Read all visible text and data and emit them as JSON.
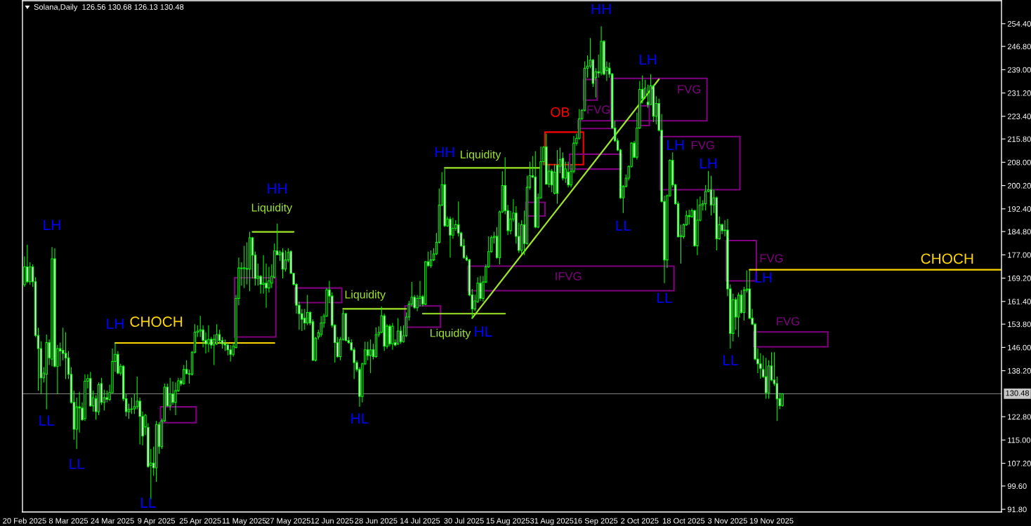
{
  "chart_data": {
    "type": "candlestick",
    "title": "Solana,Daily  126.56 130.68 126.13 130.48",
    "color": "#00ff00",
    "x": [
      "2025-02-20",
      "2025-02-21",
      "2025-02-22",
      "2025-02-23",
      "2025-02-24",
      "2025-02-25",
      "2025-02-26",
      "2025-02-27",
      "2025-02-28",
      "2025-03-01",
      "2025-03-02",
      "2025-03-03",
      "2025-03-04",
      "2025-03-05",
      "2025-03-06",
      "2025-03-07",
      "2025-03-08",
      "2025-03-09",
      "2025-03-10",
      "2025-03-11",
      "2025-03-12",
      "2025-03-13",
      "2025-03-14",
      "2025-03-15",
      "2025-03-16",
      "2025-03-17",
      "2025-03-18",
      "2025-03-19",
      "2025-03-20",
      "2025-03-21",
      "2025-03-22",
      "2025-03-23",
      "2025-03-24",
      "2025-03-25",
      "2025-03-26",
      "2025-03-27",
      "2025-03-28",
      "2025-03-29",
      "2025-03-30",
      "2025-03-31",
      "2025-04-01",
      "2025-04-02",
      "2025-04-03",
      "2025-04-04",
      "2025-04-05",
      "2025-04-06",
      "2025-04-07",
      "2025-04-08",
      "2025-04-09",
      "2025-04-10",
      "2025-04-11",
      "2025-04-12",
      "2025-04-13",
      "2025-04-14",
      "2025-04-15",
      "2025-04-16",
      "2025-04-17",
      "2025-04-18",
      "2025-04-19",
      "2025-04-20",
      "2025-04-21",
      "2025-04-22",
      "2025-04-23",
      "2025-04-24",
      "2025-04-25",
      "2025-04-26",
      "2025-04-27",
      "2025-04-28",
      "2025-04-29",
      "2025-04-30",
      "2025-05-01",
      "2025-05-02",
      "2025-05-03",
      "2025-05-04",
      "2025-05-05",
      "2025-05-06",
      "2025-05-07",
      "2025-05-08",
      "2025-05-09",
      "2025-05-10",
      "2025-05-11",
      "2025-05-12",
      "2025-05-13",
      "2025-05-14",
      "2025-05-15",
      "2025-05-16",
      "2025-05-17",
      "2025-05-18",
      "2025-05-19",
      "2025-05-20",
      "2025-05-21",
      "2025-05-22",
      "2025-05-23",
      "2025-05-24",
      "2025-05-25",
      "2025-05-26",
      "2025-05-27",
      "2025-05-28",
      "2025-05-29",
      "2025-05-30",
      "2025-05-31",
      "2025-06-01",
      "2025-06-02",
      "2025-06-03",
      "2025-06-04",
      "2025-06-05",
      "2025-06-06",
      "2025-06-07",
      "2025-06-08",
      "2025-06-09",
      "2025-06-10",
      "2025-06-11",
      "2025-06-12",
      "2025-06-13",
      "2025-06-14",
      "2025-06-15",
      "2025-06-16",
      "2025-06-17",
      "2025-06-18",
      "2025-06-19",
      "2025-06-20",
      "2025-06-21",
      "2025-06-22",
      "2025-06-23",
      "2025-06-24",
      "2025-06-25",
      "2025-06-26",
      "2025-06-27",
      "2025-06-28",
      "2025-06-29",
      "2025-06-30",
      "2025-07-01",
      "2025-07-02",
      "2025-07-03",
      "2025-07-04",
      "2025-07-05",
      "2025-07-06",
      "2025-07-07",
      "2025-07-08",
      "2025-07-09",
      "2025-07-10",
      "2025-07-11",
      "2025-07-12",
      "2025-07-13",
      "2025-07-14",
      "2025-07-15",
      "2025-07-16",
      "2025-07-17",
      "2025-07-18",
      "2025-07-19",
      "2025-07-20",
      "2025-07-21",
      "2025-07-22",
      "2025-07-23",
      "2025-07-24",
      "2025-07-25",
      "2025-07-26",
      "2025-07-27",
      "2025-07-28",
      "2025-07-29",
      "2025-07-30",
      "2025-07-31",
      "2025-08-01",
      "2025-08-02",
      "2025-08-03",
      "2025-08-04",
      "2025-08-05",
      "2025-08-06",
      "2025-08-07",
      "2025-08-08",
      "2025-08-09",
      "2025-08-10",
      "2025-08-11",
      "2025-08-12",
      "2025-08-13",
      "2025-08-14",
      "2025-08-15",
      "2025-08-16",
      "2025-08-17",
      "2025-08-18",
      "2025-08-19",
      "2025-08-20",
      "2025-08-21",
      "2025-08-22",
      "2025-08-23",
      "2025-08-24",
      "2025-08-25",
      "2025-08-26",
      "2025-08-27",
      "2025-08-28",
      "2025-08-29",
      "2025-08-30",
      "2025-08-31",
      "2025-09-01",
      "2025-09-02",
      "2025-09-03",
      "2025-09-04",
      "2025-09-05",
      "2025-09-06",
      "2025-09-07",
      "2025-09-08",
      "2025-09-09",
      "2025-09-10",
      "2025-09-11",
      "2025-09-12",
      "2025-09-13",
      "2025-09-14",
      "2025-09-15",
      "2025-09-16",
      "2025-09-17",
      "2025-09-18",
      "2025-09-19",
      "2025-09-20",
      "2025-09-21",
      "2025-09-22",
      "2025-09-23",
      "2025-09-24",
      "2025-09-25",
      "2025-09-26",
      "2025-09-27",
      "2025-09-28",
      "2025-09-29",
      "2025-09-30",
      "2025-10-01",
      "2025-10-02",
      "2025-10-03",
      "2025-10-04",
      "2025-10-05",
      "2025-10-06",
      "2025-10-07",
      "2025-10-08",
      "2025-10-09",
      "2025-10-10",
      "2025-10-11",
      "2025-10-12",
      "2025-10-13",
      "2025-10-14",
      "2025-10-15",
      "2025-10-16",
      "2025-10-17",
      "2025-10-18",
      "2025-10-19",
      "2025-10-20",
      "2025-10-21",
      "2025-10-22",
      "2025-10-23",
      "2025-10-24",
      "2025-10-25",
      "2025-10-26",
      "2025-10-27",
      "2025-10-28",
      "2025-10-29",
      "2025-10-30",
      "2025-10-31",
      "2025-11-01",
      "2025-11-02",
      "2025-11-03",
      "2025-11-04",
      "2025-11-05",
      "2025-11-06",
      "2025-11-07",
      "2025-11-08",
      "2025-11-09",
      "2025-11-10",
      "2025-11-11",
      "2025-11-12",
      "2025-11-13",
      "2025-11-14",
      "2025-11-15",
      "2025-11-16",
      "2025-11-17",
      "2025-11-18",
      "2025-11-19",
      "2025-11-20",
      "2025-11-21",
      "2025-11-22",
      "2025-11-23"
    ],
    "ohlc": [
      [
        167.0,
        176.5,
        166.3,
        173.0
      ],
      [
        173.0,
        180.4,
        167.5,
        168.0
      ],
      [
        168.0,
        174.5,
        167.0,
        173.0
      ],
      [
        173.0,
        173.8,
        166.3,
        168.0
      ],
      [
        168.0,
        169.5,
        149.5,
        150.0
      ],
      [
        150.0,
        152.6,
        131.5,
        145.6
      ],
      [
        145.6,
        148.0,
        130.4,
        135.8
      ],
      [
        135.8,
        139.4,
        134.3,
        137.4
      ],
      [
        137.0,
        150.3,
        125.3,
        147.6
      ],
      [
        147.6,
        148.7,
        140.1,
        142.5
      ],
      [
        142.1,
        179.6,
        139.7,
        175.7
      ],
      [
        175.7,
        179.2,
        139.3,
        139.7
      ],
      [
        139.7,
        146.8,
        130.4,
        145.6
      ],
      [
        145.6,
        147.6,
        139.7,
        144.8
      ],
      [
        145.0,
        152.6,
        141.7,
        144.0
      ],
      [
        144.0,
        151.1,
        135.4,
        142.5
      ],
      [
        142.5,
        144.8,
        135.4,
        137.0
      ],
      [
        137.0,
        139.4,
        127.2,
        127.6
      ],
      [
        127.6,
        131.5,
        115.1,
        118.6
      ],
      [
        118.6,
        129.2,
        112.0,
        126.1
      ],
      [
        126.1,
        131.1,
        117.5,
        125.7
      ],
      [
        125.7,
        127.6,
        121.4,
        121.8
      ],
      [
        122.2,
        137.0,
        121.4,
        134.7
      ],
      [
        134.7,
        137.0,
        132.3,
        135.6
      ],
      [
        135.6,
        137.8,
        126.1,
        126.4
      ],
      [
        126.4,
        131.5,
        124.5,
        129.2
      ],
      [
        128.8,
        130.0,
        121.8,
        124.5
      ],
      [
        124.5,
        134.3,
        123.3,
        133.5
      ],
      [
        133.9,
        135.8,
        126.8,
        127.6
      ],
      [
        127.6,
        131.9,
        124.9,
        129.2
      ],
      [
        129.2,
        131.5,
        127.6,
        128.6
      ],
      [
        128.6,
        133.5,
        128.0,
        130.9
      ],
      [
        130.9,
        145.6,
        130.7,
        141.3
      ],
      [
        141.3,
        147.5,
        137.8,
        143.7
      ],
      [
        143.7,
        144.8,
        137.0,
        137.4
      ],
      [
        137.4,
        140.5,
        136.6,
        139.7
      ],
      [
        139.7,
        140.1,
        128.0,
        128.8
      ],
      [
        128.8,
        130.4,
        122.9,
        124.5
      ],
      [
        124.5,
        127.2,
        122.1,
        125.3
      ],
      [
        125.3,
        129.2,
        123.7,
        125.4
      ],
      [
        125.4,
        130.4,
        123.7,
        126.2
      ],
      [
        126.2,
        136.2,
        125.3,
        128.0
      ],
      [
        128.0,
        129.2,
        113.5,
        122.9
      ],
      [
        122.9,
        124.5,
        113.2,
        116.3
      ],
      [
        119.4,
        123.7,
        116.7,
        123.3
      ],
      [
        119.2,
        120.6,
        105.7,
        106.1
      ],
      [
        106.5,
        112.0,
        95.2,
        107.3
      ],
      [
        107.3,
        112.8,
        103.0,
        105.7
      ],
      [
        105.7,
        121.4,
        101.0,
        120.2
      ],
      [
        120.2,
        121.0,
        110.4,
        112.8
      ],
      [
        112.8,
        122.2,
        112.0,
        121.4
      ],
      [
        121.4,
        133.9,
        121.0,
        132.7
      ],
      [
        132.7,
        133.9,
        126.1,
        126.4
      ],
      [
        126.4,
        135.8,
        124.9,
        130.4
      ],
      [
        130.4,
        134.6,
        126.8,
        127.6
      ],
      [
        127.6,
        134.3,
        123.3,
        131.5
      ],
      [
        131.5,
        135.8,
        131.1,
        134.8
      ],
      [
        134.8,
        135.8,
        133.1,
        133.9
      ],
      [
        133.9,
        140.1,
        133.5,
        138.6
      ],
      [
        138.6,
        141.7,
        137.0,
        137.2
      ],
      [
        137.2,
        138.6,
        133.9,
        137.0
      ],
      [
        137.0,
        144.8,
        136.6,
        144.4
      ],
      [
        144.4,
        153.8,
        144.0,
        151.1
      ],
      [
        151.1,
        153.4,
        149.5,
        151.5
      ],
      [
        151.5,
        156.6,
        149.5,
        151.9
      ],
      [
        151.9,
        153.4,
        146.0,
        148.4
      ],
      [
        148.4,
        151.1,
        144.0,
        147.2
      ],
      [
        147.2,
        153.4,
        144.4,
        148.7
      ],
      [
        148.7,
        149.5,
        145.6,
        146.8
      ],
      [
        146.8,
        150.3,
        140.1,
        148.7
      ],
      [
        147.2,
        153.8,
        146.8,
        150.3
      ],
      [
        150.3,
        151.9,
        147.2,
        148.3
      ],
      [
        148.3,
        149.5,
        145.6,
        147.2
      ],
      [
        147.2,
        148.7,
        144.8,
        146.8
      ],
      [
        146.8,
        147.5,
        143.3,
        145.2
      ],
      [
        145.2,
        146.8,
        141.3,
        143.7
      ],
      [
        143.7,
        147.5,
        142.9,
        146.4
      ],
      [
        146.0,
        163.6,
        145.6,
        162.4
      ],
      [
        162.4,
        176.1,
        160.1,
        172.6
      ],
      [
        172.6,
        174.5,
        166.7,
        172.4
      ],
      [
        172.4,
        180.0,
        165.9,
        172.7
      ],
      [
        172.4,
        181.2,
        167.1,
        172.2
      ],
      [
        172.2,
        184.7,
        164.8,
        182.7
      ],
      [
        182.7,
        183.0,
        169.1,
        176.9
      ],
      [
        176.9,
        178.1,
        166.7,
        169.1
      ],
      [
        169.1,
        174.1,
        166.7,
        169.8
      ],
      [
        169.8,
        170.2,
        164.0,
        167.1
      ],
      [
        167.1,
        176.9,
        164.0,
        167.5
      ],
      [
        167.5,
        174.1,
        159.3,
        165.9
      ],
      [
        165.9,
        173.0,
        164.4,
        168.3
      ],
      [
        167.5,
        173.8,
        165.9,
        169.8
      ],
      [
        169.5,
        180.8,
        169.1,
        178.3
      ],
      [
        178.3,
        187.4,
        176.9,
        177.0
      ],
      [
        177.0,
        178.5,
        175.0,
        177.8
      ],
      [
        177.8,
        179.2,
        169.1,
        172.2
      ],
      [
        172.2,
        178.5,
        171.4,
        175.3
      ],
      [
        175.3,
        179.2,
        174.5,
        177.8
      ],
      [
        178.1,
        178.5,
        170.6,
        170.8
      ],
      [
        170.8,
        171.0,
        166.7,
        167.1
      ],
      [
        167.1,
        167.5,
        157.3,
        160.1
      ],
      [
        160.1,
        161.3,
        151.9,
        157.3
      ],
      [
        157.3,
        158.9,
        151.5,
        155.4
      ],
      [
        155.8,
        158.9,
        151.9,
        154.2
      ],
      [
        154.2,
        163.6,
        153.4,
        157.7
      ],
      [
        157.7,
        158.1,
        153.4,
        154.2
      ],
      [
        154.6,
        155.4,
        141.5,
        141.7
      ],
      [
        141.7,
        149.5,
        141.3,
        149.1
      ],
      [
        149.5,
        151.9,
        148.7,
        150.9
      ],
      [
        150.3,
        156.5,
        149.5,
        154.2
      ],
      [
        154.2,
        157.3,
        152.6,
        156.5
      ],
      [
        156.5,
        165.9,
        156.2,
        165.3
      ],
      [
        165.3,
        168.3,
        160.9,
        163.2
      ],
      [
        163.2,
        164.4,
        152.6,
        153.4
      ],
      [
        153.4,
        153.8,
        140.9,
        147.6
      ],
      [
        147.6,
        149.5,
        142.5,
        142.9
      ],
      [
        142.9,
        149.5,
        141.7,
        148.7
      ],
      [
        148.7,
        158.5,
        148.3,
        157.3
      ],
      [
        157.3,
        157.6,
        148.0,
        148.3
      ],
      [
        148.3,
        149.5,
        147.2,
        147.6
      ],
      [
        147.6,
        148.7,
        144.8,
        145.2
      ],
      [
        145.2,
        146.0,
        135.4,
        140.9
      ],
      [
        140.9,
        141.7,
        137.8,
        138.6
      ],
      [
        138.6,
        139.4,
        126.1,
        129.6
      ],
      [
        129.6,
        140.9,
        127.6,
        140.5
      ],
      [
        140.5,
        147.9,
        140.1,
        145.2
      ],
      [
        145.2,
        147.9,
        141.7,
        143.3
      ],
      [
        143.3,
        148.7,
        137.4,
        145.2
      ],
      [
        145.2,
        147.2,
        142.0,
        142.9
      ],
      [
        142.9,
        152.7,
        142.5,
        150.3
      ],
      [
        150.3,
        153.1,
        149.5,
        151.1
      ],
      [
        151.1,
        159.7,
        150.7,
        156.6
      ],
      [
        156.6,
        157.3,
        144.8,
        146.4
      ],
      [
        146.4,
        153.8,
        145.6,
        153.1
      ],
      [
        153.1,
        153.8,
        146.4,
        147.2
      ],
      [
        147.2,
        154.2,
        145.2,
        153.1
      ],
      [
        147.6,
        148.7,
        146.4,
        146.8
      ],
      [
        147.2,
        155.8,
        146.8,
        151.5
      ],
      [
        151.5,
        153.1,
        147.2,
        147.9
      ],
      [
        147.9,
        153.4,
        147.6,
        149.9
      ],
      [
        149.9,
        157.7,
        149.5,
        156.2
      ],
      [
        156.2,
        161.6,
        155.0,
        160.5
      ],
      [
        160.5,
        167.9,
        159.7,
        162.8
      ],
      [
        162.8,
        163.6,
        158.9,
        159.3
      ],
      [
        159.3,
        163.6,
        158.1,
        162.4
      ],
      [
        162.4,
        168.3,
        159.7,
        163.0
      ],
      [
        163.0,
        163.6,
        159.7,
        160.5
      ],
      [
        160.5,
        174.9,
        160.1,
        174.7
      ],
      [
        174.7,
        178.1,
        173.0,
        173.4
      ],
      [
        173.4,
        178.5,
        172.6,
        175.3
      ],
      [
        175.3,
        179.2,
        174.9,
        177.3
      ],
      [
        177.3,
        184.3,
        176.9,
        181.2
      ],
      [
        181.2,
        199.2,
        180.8,
        193.7
      ],
      [
        193.7,
        204.7,
        193.3,
        200.5
      ],
      [
        200.5,
        205.8,
        186.3,
        186.7
      ],
      [
        186.7,
        189.8,
        186.3,
        189.0
      ],
      [
        189.0,
        189.8,
        176.1,
        183.6
      ],
      [
        183.6,
        189.4,
        182.4,
        185.9
      ],
      [
        185.9,
        188.6,
        185.1,
        187.1
      ],
      [
        187.1,
        194.9,
        183.2,
        184.3
      ],
      [
        184.3,
        184.7,
        179.6,
        180.0
      ],
      [
        180.0,
        182.4,
        175.7,
        176.1
      ],
      [
        176.1,
        176.9,
        174.9,
        175.3
      ],
      [
        175.3,
        175.7,
        163.2,
        163.6
      ],
      [
        163.6,
        165.6,
        155.8,
        158.9
      ],
      [
        158.9,
        163.6,
        158.1,
        161.6
      ],
      [
        161.3,
        169.5,
        160.9,
        167.5
      ],
      [
        167.5,
        169.9,
        161.6,
        162.4
      ],
      [
        162.4,
        169.9,
        161.3,
        167.9
      ],
      [
        167.9,
        173.8,
        167.5,
        173.0
      ],
      [
        173.0,
        183.2,
        172.6,
        178.1
      ],
      [
        178.1,
        183.5,
        177.7,
        182.8
      ],
      [
        182.8,
        184.7,
        180.8,
        183.2
      ],
      [
        183.2,
        186.3,
        175.7,
        176.1
      ],
      [
        176.1,
        191.8,
        173.8,
        191.4
      ],
      [
        191.4,
        205.0,
        191.0,
        200.2
      ],
      [
        200.2,
        209.7,
        190.6,
        191.8
      ],
      [
        191.8,
        193.7,
        183.6,
        185.1
      ],
      [
        185.1,
        191.7,
        183.9,
        189.0
      ],
      [
        189.0,
        195.7,
        188.2,
        191.0
      ],
      [
        191.0,
        193.3,
        180.8,
        183.2
      ],
      [
        183.2,
        187.8,
        177.7,
        178.5
      ],
      [
        178.5,
        188.6,
        177.3,
        187.1
      ],
      [
        187.1,
        191.8,
        176.9,
        180.8
      ],
      [
        180.8,
        203.5,
        180.4,
        199.6
      ],
      [
        199.6,
        208.2,
        198.8,
        203.5
      ],
      [
        203.5,
        210.1,
        202.7,
        203.1
      ],
      [
        203.1,
        211.7,
        185.9,
        186.3
      ],
      [
        186.3,
        197.6,
        185.9,
        196.1
      ],
      [
        196.1,
        213.3,
        195.7,
        208.2
      ],
      [
        208.2,
        213.5,
        207.0,
        213.0
      ],
      [
        213.2,
        217.6,
        200.4,
        200.7
      ],
      [
        200.7,
        207.4,
        199.6,
        205.0
      ],
      [
        205.0,
        205.8,
        198.0,
        200.4
      ],
      [
        197.6,
        207.4,
        197.2,
        204.7
      ],
      [
        207.0,
        212.1,
        194.1,
        197.6
      ],
      [
        206.6,
        212.9,
        204.3,
        208.9
      ],
      [
        209.3,
        211.3,
        201.9,
        202.7
      ],
      [
        202.7,
        208.2,
        201.1,
        205.8
      ],
      [
        204.7,
        208.2,
        199.6,
        200.4
      ],
      [
        200.4,
        207.4,
        199.6,
        205.0
      ],
      [
        205.0,
        216.8,
        204.3,
        214.4
      ],
      [
        214.4,
        217.6,
        213.6,
        216.0
      ],
      [
        216.0,
        225.8,
        215.6,
        222.6
      ],
      [
        222.6,
        225.8,
        222.2,
        225.4
      ],
      [
        225.4,
        241.8,
        225.0,
        239.5
      ],
      [
        239.5,
        243.8,
        236.3,
        240.2
      ],
      [
        240.2,
        249.6,
        239.5,
        242.2
      ],
      [
        242.2,
        242.6,
        233.2,
        234.4
      ],
      [
        236.3,
        239.5,
        229.7,
        238.3
      ],
      [
        238.3,
        244.1,
        236.3,
        237.9
      ],
      [
        237.9,
        253.5,
        237.1,
        248.5
      ],
      [
        248.5,
        248.9,
        237.1,
        237.5
      ],
      [
        238.7,
        241.8,
        235.2,
        239.8
      ],
      [
        239.5,
        241.4,
        236.3,
        237.5
      ],
      [
        237.5,
        237.9,
        219.1,
        219.5
      ],
      [
        219.5,
        221.9,
        214.8,
        215.2
      ],
      [
        215.2,
        216.0,
        211.7,
        212.1
      ],
      [
        212.1,
        212.5,
        195.7,
        196.1
      ],
      [
        196.1,
        200.4,
        191.0,
        199.9
      ],
      [
        199.9,
        203.9,
        199.6,
        202.7
      ],
      [
        202.7,
        207.0,
        201.9,
        206.6
      ],
      [
        206.6,
        214.8,
        206.2,
        214.4
      ],
      [
        214.4,
        215.2,
        209.4,
        209.7
      ],
      [
        209.7,
        224.6,
        208.9,
        219.5
      ],
      [
        219.5,
        235.2,
        219.1,
        232.4
      ],
      [
        232.4,
        237.1,
        227.7,
        229.3
      ],
      [
        230.1,
        235.6,
        229.3,
        232.8
      ],
      [
        228.1,
        234.0,
        226.2,
        227.3
      ],
      [
        227.3,
        237.5,
        227.3,
        233.6
      ],
      [
        233.6,
        234.0,
        221.5,
        223.4
      ],
      [
        223.4,
        230.1,
        220.7,
        227.7
      ],
      [
        227.7,
        229.3,
        218.3,
        218.7
      ],
      [
        218.7,
        224.2,
        194.5,
        194.9
      ],
      [
        194.9,
        196.8,
        167.5,
        175.3
      ],
      [
        175.3,
        197.2,
        172.6,
        196.8
      ],
      [
        196.8,
        209.0,
        196.4,
        208.6
      ],
      [
        208.6,
        211.3,
        199.6,
        200.4
      ],
      [
        200.4,
        200.8,
        193.7,
        194.1
      ],
      [
        194.1,
        194.9,
        182.8,
        183.1
      ],
      [
        183.1,
        187.1,
        174.1,
        183.5
      ],
      [
        183.1,
        187.5,
        182.4,
        187.1
      ],
      [
        187.1,
        191.8,
        186.7,
        190.2
      ],
      [
        190.2,
        192.1,
        187.1,
        189.8
      ],
      [
        189.8,
        192.5,
        189.4,
        191.8
      ],
      [
        191.8,
        192.1,
        179.6,
        180.0
      ],
      [
        180.0,
        195.7,
        176.9,
        188.6
      ],
      [
        188.6,
        196.5,
        188.2,
        193.7
      ],
      [
        193.7,
        195.3,
        191.8,
        194.1
      ],
      [
        194.1,
        200.4,
        191.8,
        198.2
      ],
      [
        198.2,
        205.1,
        198.0,
        198.8
      ],
      [
        198.8,
        203.5,
        190.2,
        193.7
      ],
      [
        193.7,
        198.8,
        191.0,
        196.1
      ],
      [
        196.1,
        196.5,
        178.5,
        182.4
      ],
      [
        182.4,
        189.8,
        182.0,
        187.1
      ],
      [
        187.1,
        187.5,
        183.9,
        185.1
      ],
      [
        185.1,
        188.6,
        183.2,
        185.3
      ],
      [
        185.3,
        189.0,
        163.2,
        165.6
      ],
      [
        165.6,
        167.1,
        145.6,
        150.7
      ],
      [
        150.7,
        164.0,
        148.0,
        162.0
      ],
      [
        162.0,
        162.8,
        151.9,
        156.2
      ],
      [
        156.2,
        164.4,
        149.5,
        163.5
      ],
      [
        163.5,
        165.2,
        157.3,
        157.7
      ],
      [
        157.7,
        166.3,
        155.0,
        165.2
      ],
      [
        165.2,
        171.8,
        164.4,
        165.6
      ],
      [
        165.6,
        171.8,
        155.4,
        155.8
      ],
      [
        155.8,
        158.9,
        153.4,
        153.8
      ],
      [
        153.8,
        154.2,
        141.7,
        142.1
      ],
      [
        142.1,
        145.6,
        137.4,
        140.5
      ],
      [
        140.5,
        144.1,
        135.5,
        139.0
      ],
      [
        138.6,
        143.3,
        135.8,
        136.2
      ],
      [
        136.2,
        142.5,
        128.8,
        130.8
      ],
      [
        130.8,
        141.7,
        128.8,
        139.8
      ],
      [
        139.8,
        144.4,
        134.7,
        135.1
      ],
      [
        135.1,
        144.4,
        133.1,
        133.9
      ],
      [
        133.9,
        136.2,
        121.4,
        128.8
      ],
      [
        128.8,
        130.8,
        125.3,
        126.5
      ],
      [
        126.56,
        130.68,
        126.13,
        130.48
      ]
    ],
    "xlim": [
      "2025-02-19T06:00",
      "2026-02-10T18:00"
    ],
    "xticks": [
      {
        "value": "2025-02-20",
        "label": "20 Feb 2025"
      },
      {
        "value": "2025-03-08",
        "label": "8 Mar 2025"
      },
      {
        "value": "2025-03-24",
        "label": "24 Mar 2025"
      },
      {
        "value": "2025-04-09",
        "label": "9 Apr 2025"
      },
      {
        "value": "2025-04-25",
        "label": "25 Apr 2025"
      },
      {
        "value": "2025-05-11",
        "label": "11 May 2025"
      },
      {
        "value": "2025-05-27",
        "label": "27 May 2025"
      },
      {
        "value": "2025-06-12",
        "label": "12 Jun 2025"
      },
      {
        "value": "2025-06-28",
        "label": "28 Jun 2025"
      },
      {
        "value": "2025-07-14",
        "label": "14 Jul 2025"
      },
      {
        "value": "2025-07-30",
        "label": "30 Jul 2025"
      },
      {
        "value": "2025-08-15",
        "label": "15 Aug 2025"
      },
      {
        "value": "2025-08-31",
        "label": "31 Aug 2025"
      },
      {
        "value": "2025-09-16",
        "label": "16 Sep 2025"
      },
      {
        "value": "2025-10-02",
        "label": "2 Oct 2025"
      },
      {
        "value": "2025-10-18",
        "label": "18 Oct 2025"
      },
      {
        "value": "2025-11-03",
        "label": "3 Nov 2025"
      },
      {
        "value": "2025-11-19",
        "label": "19 Nov 2025"
      }
    ],
    "ylim": [
      90.9,
      262.1
    ],
    "yticks": [
      {
        "value": 254.4,
        "label": "254.40"
      },
      {
        "value": 246.8,
        "label": "246.80"
      },
      {
        "value": 239.0,
        "label": "239.00"
      },
      {
        "value": 231.2,
        "label": "231.20"
      },
      {
        "value": 223.4,
        "label": "223.40"
      },
      {
        "value": 215.8,
        "label": "215.80"
      },
      {
        "value": 208.0,
        "label": "208.00"
      },
      {
        "value": 200.2,
        "label": "200.20"
      },
      {
        "value": 192.4,
        "label": "192.40"
      },
      {
        "value": 184.8,
        "label": "184.80"
      },
      {
        "value": 177.0,
        "label": "177.00"
      },
      {
        "value": 169.2,
        "label": "169.20"
      },
      {
        "value": 161.4,
        "label": "161.40"
      },
      {
        "value": 153.8,
        "label": "153.80"
      },
      {
        "value": 146.0,
        "label": "146.00"
      },
      {
        "value": 138.2,
        "label": "138.20"
      },
      {
        "value": 122.8,
        "label": "122.80"
      },
      {
        "value": 115.0,
        "label": "115.00"
      },
      {
        "value": 107.2,
        "label": "107.20"
      },
      {
        "value": 99.6,
        "label": "99.60"
      },
      {
        "value": 91.8,
        "label": "91.80"
      }
    ],
    "ref_lines": [
      {
        "axis": "y",
        "value": 130.48,
        "label": "130.48",
        "color": "#808080"
      }
    ],
    "series": [
      {
        "type": "line",
        "color": "#ffd700",
        "x": [
          "2025-03-25",
          "2025-05-22"
        ],
        "values": [
          147.5,
          147.5
        ]
      },
      {
        "type": "line",
        "color": "#ffd700",
        "x": [
          "2025-11-11",
          "2026-02-10T18:00"
        ],
        "values": [
          172.0,
          172.0
        ]
      },
      {
        "type": "line",
        "color": "#9ee62a",
        "x": [
          "2025-05-14",
          "2025-05-29"
        ],
        "values": [
          184.7,
          184.7
        ]
      },
      {
        "type": "line",
        "color": "#9ee62a",
        "x": [
          "2025-06-16",
          "2025-07-09"
        ],
        "values": [
          158.9,
          158.9
        ]
      },
      {
        "type": "line",
        "color": "#9ee62a",
        "x": [
          "2025-07-15",
          "2025-08-14"
        ],
        "values": [
          157.3,
          157.3
        ]
      },
      {
        "type": "line",
        "color": "#9ee62a",
        "x": [
          "2025-07-23",
          "2025-08-27"
        ],
        "values": [
          206.1,
          206.1
        ]
      },
      {
        "type": "line",
        "color": "#9ee62a",
        "x": [
          "2025-08-02",
          "2025-10-09"
        ],
        "values": [
          155.8,
          235.8
        ]
      }
    ],
    "annotations": [
      "LH",
      "LL",
      "LL",
      "LH",
      "LL",
      "HH",
      "HL",
      "HH",
      "HL",
      "HH",
      "LL",
      "LH",
      "LL",
      "LH",
      "LH",
      "LL",
      "LH",
      "Liquidity",
      "Liquidity",
      "Liquidity",
      "Liquidity",
      "CHOCH",
      "CHOCH",
      "IFVG",
      "FVG",
      "FVG",
      "FVG",
      "FVG",
      "FVG",
      "OB"
    ]
  }
}
